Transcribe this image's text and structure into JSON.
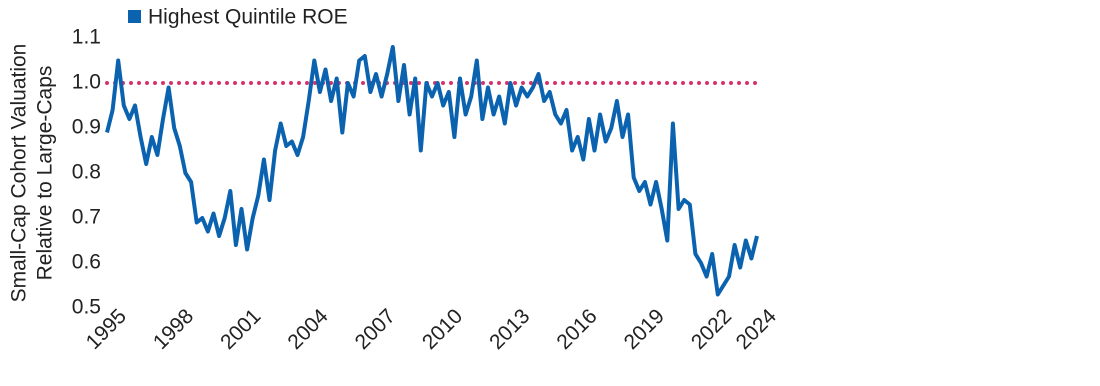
{
  "chart_data": {
    "type": "line",
    "ylabel": [
      "Small-Cap Cohort Valuation",
      "Relative to Large-Caps"
    ],
    "x": [
      1995,
      1995.25,
      1995.5,
      1995.75,
      1996,
      1996.25,
      1996.5,
      1996.75,
      1997,
      1997.25,
      1997.5,
      1997.75,
      1998,
      1998.25,
      1998.5,
      1998.75,
      1999,
      1999.25,
      1999.5,
      1999.75,
      2000,
      2000.25,
      2000.5,
      2000.75,
      2001,
      2001.25,
      2001.5,
      2001.75,
      2002,
      2002.25,
      2002.5,
      2002.75,
      2003,
      2003.25,
      2003.5,
      2003.75,
      2004,
      2004.25,
      2004.5,
      2004.75,
      2005,
      2005.25,
      2005.5,
      2005.75,
      2006,
      2006.25,
      2006.5,
      2006.75,
      2007,
      2007.25,
      2007.5,
      2007.75,
      2008,
      2008.25,
      2008.5,
      2008.75,
      2009,
      2009.25,
      2009.5,
      2009.75,
      2010,
      2010.25,
      2010.5,
      2010.75,
      2011,
      2011.25,
      2011.5,
      2011.75,
      2012,
      2012.25,
      2012.5,
      2012.75,
      2013,
      2013.25,
      2013.5,
      2013.75,
      2014,
      2014.25,
      2014.5,
      2014.75,
      2015,
      2015.25,
      2015.5,
      2015.75,
      2016,
      2016.25,
      2016.5,
      2016.75,
      2017,
      2017.25,
      2017.5,
      2017.75,
      2018,
      2018.25,
      2018.5,
      2018.75,
      2019,
      2019.25,
      2019.5,
      2019.75,
      2020,
      2020.25,
      2020.5,
      2020.75,
      2021,
      2021.25,
      2021.5,
      2021.75,
      2022,
      2022.25,
      2022.5,
      2022.75,
      2023,
      2023.25,
      2023.5,
      2023.75,
      2024
    ],
    "series": [
      {
        "name": "Highest Quintile ROE",
        "color": "#0b63b0",
        "values": [
          0.89,
          0.94,
          1.05,
          0.95,
          0.92,
          0.95,
          0.88,
          0.82,
          0.88,
          0.84,
          0.92,
          0.99,
          0.9,
          0.86,
          0.8,
          0.78,
          0.69,
          0.7,
          0.67,
          0.71,
          0.66,
          0.7,
          0.76,
          0.64,
          0.72,
          0.63,
          0.7,
          0.75,
          0.83,
          0.74,
          0.85,
          0.91,
          0.86,
          0.87,
          0.84,
          0.88,
          0.96,
          1.05,
          0.98,
          1.03,
          0.96,
          1.01,
          0.89,
          1,
          0.97,
          1.05,
          1.06,
          0.98,
          1.02,
          0.97,
          1.02,
          1.08,
          0.96,
          1.04,
          0.93,
          1.01,
          0.85,
          1,
          0.97,
          1,
          0.95,
          0.98,
          0.88,
          1.01,
          0.93,
          0.97,
          1.05,
          0.92,
          0.99,
          0.93,
          0.97,
          0.91,
          1,
          0.95,
          0.99,
          0.97,
          0.99,
          1.02,
          0.96,
          0.98,
          0.93,
          0.91,
          0.94,
          0.85,
          0.88,
          0.83,
          0.92,
          0.85,
          0.93,
          0.87,
          0.9,
          0.96,
          0.88,
          0.93,
          0.79,
          0.76,
          0.78,
          0.73,
          0.78,
          0.72,
          0.65,
          0.91,
          0.72,
          0.74,
          0.73,
          0.62,
          0.6,
          0.57,
          0.62,
          0.53,
          0.55,
          0.57,
          0.64,
          0.59,
          0.65,
          0.61,
          0.66
        ]
      }
    ],
    "xlim": [
      1995,
      2024
    ],
    "xticks": [
      1995,
      1998,
      2001,
      2004,
      2007,
      2010,
      2013,
      2016,
      2019,
      2022,
      2024
    ],
    "ylim": [
      0.5,
      1.1
    ],
    "yticks": [
      0.5,
      0.6,
      0.7,
      0.8,
      0.9,
      {
        "value": 1,
        "label": "1.0"
      },
      1.1
    ],
    "reference_line": {
      "value": 1,
      "color": "#d6336c"
    },
    "legend": "top-left"
  }
}
